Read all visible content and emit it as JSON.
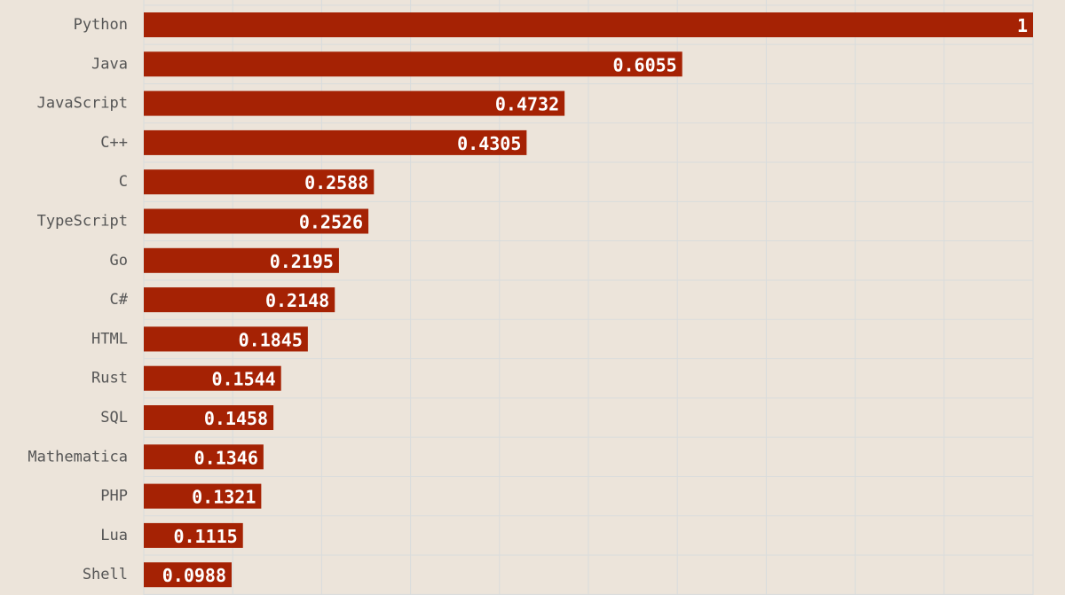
{
  "chart_data": {
    "type": "bar",
    "orientation": "horizontal",
    "categories": [
      "Python",
      "Java",
      "JavaScript",
      "C++",
      "C",
      "TypeScript",
      "Go",
      "C#",
      "HTML",
      "Rust",
      "SQL",
      "Mathematica",
      "PHP",
      "Lua",
      "Shell"
    ],
    "values": [
      1,
      0.6055,
      0.4732,
      0.4305,
      0.2588,
      0.2526,
      0.2195,
      0.2148,
      0.1845,
      0.1544,
      0.1458,
      0.1346,
      0.1321,
      0.1115,
      0.0988
    ],
    "value_labels": [
      "1",
      "0.6055",
      "0.4732",
      "0.4305",
      "0.2588",
      "0.2526",
      "0.2195",
      "0.2148",
      "0.1845",
      "0.1544",
      "0.1458",
      "0.1346",
      "0.1321",
      "0.1115",
      "0.0988"
    ],
    "xlim": [
      0,
      1
    ],
    "grid": true,
    "legend": "none",
    "colors": {
      "bar": "#a52204",
      "background": "#ece4da",
      "grid": "#d9dcdc",
      "label": "#555555",
      "value_text": "#ffffff"
    }
  }
}
